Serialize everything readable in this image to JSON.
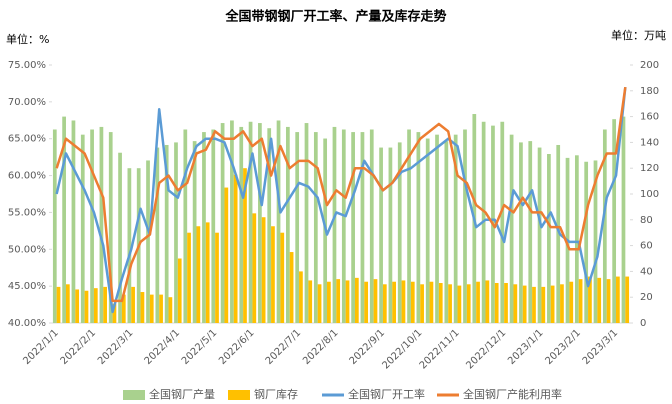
{
  "chart_data": {
    "type": "combo",
    "title": "全国带钢钢厂开工率、产量及库存走势",
    "y_unit_label": "单位：%",
    "y2_unit_label": "单位：万吨",
    "categories": [
      "2022/1/1",
      null,
      null,
      null,
      "2022/2/1",
      null,
      null,
      null,
      "2022/3/1",
      null,
      null,
      null,
      null,
      "2022/4/1",
      null,
      null,
      null,
      "2022/5/1",
      null,
      null,
      null,
      "2022/6/1",
      null,
      null,
      null,
      null,
      "2022/7/1",
      null,
      null,
      null,
      "2022/8/1",
      null,
      null,
      null,
      null,
      "2022/9/1",
      null,
      null,
      null,
      "2022/10/1",
      null,
      null,
      null,
      "2022/11/1",
      null,
      null,
      null,
      null,
      "2022/12/1",
      null,
      null,
      null,
      "2023/1/1",
      null,
      null,
      null,
      "2023/2/1",
      null,
      null,
      null,
      "2023/3/1",
      null
    ],
    "series": [
      {
        "name": "全国钢厂产量",
        "type": "bar",
        "axis": "y2",
        "color": "#a9d18e",
        "values": [
          150,
          160,
          157,
          146,
          150,
          152,
          148,
          132,
          120,
          120,
          126,
          136,
          138,
          140,
          150,
          141,
          148,
          150,
          155,
          157,
          152,
          156,
          155,
          151,
          157,
          152,
          148,
          155,
          148,
          143,
          152,
          150,
          148,
          148,
          150,
          136,
          136,
          140,
          150,
          148,
          143,
          146,
          141,
          146,
          150,
          162,
          156,
          153,
          156,
          146,
          140,
          141,
          136,
          131,
          138,
          128,
          130,
          125,
          126,
          150,
          158,
          160
        ]
      },
      {
        "name": "钢厂库存",
        "type": "bar",
        "axis": "y2",
        "color": "#ffc000",
        "values": [
          28,
          30,
          26,
          25,
          27,
          28,
          15,
          22,
          28,
          24,
          22,
          22,
          20,
          50,
          70,
          75,
          78,
          70,
          105,
          115,
          120,
          85,
          82,
          75,
          70,
          55,
          40,
          33,
          30,
          32,
          34,
          33,
          35,
          32,
          34,
          30,
          32,
          33,
          32,
          30,
          32,
          31,
          30,
          29,
          30,
          32,
          33,
          31,
          31,
          30,
          29,
          28,
          28,
          29,
          30,
          32,
          34,
          36,
          35,
          34,
          36,
          36
        ]
      },
      {
        "name": "全国钢厂开工率",
        "type": "line",
        "color": "#5b9bd5",
        "values": [
          57.5,
          63,
          60.5,
          58,
          55,
          50.5,
          41.5,
          46,
          50,
          55.5,
          52,
          69,
          58,
          57,
          61,
          64,
          65,
          65,
          64.5,
          61,
          57,
          63,
          56,
          65,
          55,
          57,
          59,
          58.5,
          57,
          52,
          55,
          54.5,
          58,
          62,
          60,
          58,
          59,
          60.5,
          61,
          62,
          63,
          64,
          65,
          64,
          58,
          53,
          54,
          54,
          51,
          58,
          56,
          58,
          53,
          55,
          52,
          51,
          51,
          45,
          49,
          57,
          60,
          72
        ]
      },
      {
        "name": "全国钢厂产能利用率",
        "type": "line",
        "color": "#ed7d31",
        "values": [
          61,
          65,
          64,
          63,
          60,
          57,
          43,
          43,
          48,
          51,
          52,
          59,
          60,
          58,
          59,
          63,
          63.5,
          66,
          65,
          65,
          66,
          64,
          65,
          60,
          64,
          61,
          62,
          62,
          61,
          56,
          58,
          57,
          61,
          61,
          60,
          58,
          59,
          61,
          63,
          65,
          66,
          67,
          66,
          60,
          59,
          56,
          55,
          53,
          56,
          55,
          57,
          55,
          55,
          53,
          53,
          50,
          50,
          56,
          60,
          63,
          63,
          72
        ]
      }
    ],
    "ylim": [
      40,
      75
    ],
    "yticks": [
      {
        "value": 40,
        "label": "40.00%"
      },
      {
        "value": 45,
        "label": "45.00%"
      },
      {
        "value": 50,
        "label": "50.00%"
      },
      {
        "value": 55,
        "label": "55.00%"
      },
      {
        "value": 60,
        "label": "60.00%"
      },
      {
        "value": 65,
        "label": "65.00%"
      },
      {
        "value": 70,
        "label": "70.00%"
      },
      {
        "value": 75,
        "label": "75.00%"
      }
    ],
    "y2lim": [
      0,
      200
    ],
    "y2ticks": [
      0,
      20,
      40,
      60,
      80,
      100,
      120,
      140,
      160,
      180,
      200
    ],
    "grid": false,
    "legend": "bottom"
  }
}
